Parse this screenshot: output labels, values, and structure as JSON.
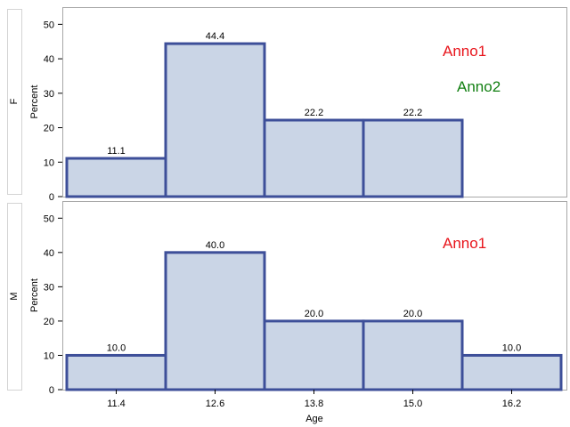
{
  "chart_data": {
    "type": "bar",
    "subtype": "histogram-panel",
    "xlabel": "Age",
    "ylabel": "Percent",
    "categories": [
      "11.4",
      "12.6",
      "13.8",
      "15.0",
      "16.2"
    ],
    "ylim": [
      0,
      55
    ],
    "yticks": [
      0,
      10,
      20,
      30,
      40,
      50
    ],
    "grid": false,
    "bar_fill": "#cad5e6",
    "bar_edge": "#3d4f99",
    "panels": [
      {
        "label": "F",
        "values": [
          11.1,
          44.4,
          22.2,
          22.2,
          0
        ],
        "data_labels": [
          "11.1",
          "44.4",
          "22.2",
          "22.2",
          ""
        ],
        "annotations": [
          {
            "text": "Anno1",
            "color": "#e8141b"
          },
          {
            "text": "Anno2",
            "color": "#138013"
          }
        ]
      },
      {
        "label": "M",
        "values": [
          10.0,
          40.0,
          20.0,
          20.0,
          10.0
        ],
        "data_labels": [
          "10.0",
          "40.0",
          "20.0",
          "20.0",
          "10.0"
        ],
        "annotations": [
          {
            "text": "Anno1",
            "color": "#e8141b"
          }
        ]
      }
    ]
  }
}
